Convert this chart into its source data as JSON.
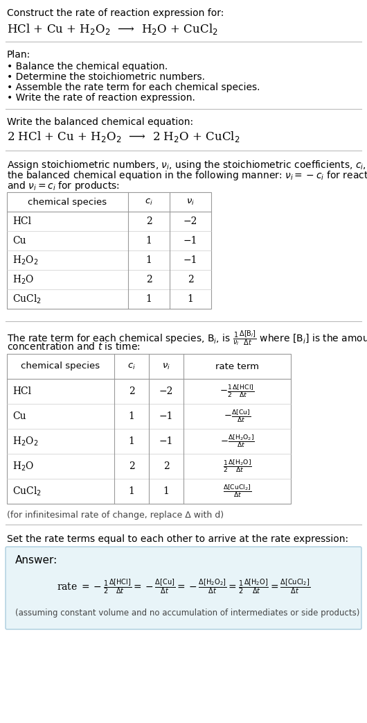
{
  "bg_color": "#ffffff",
  "text_color": "#000000",
  "answer_box_color": "#e8f4f8",
  "answer_box_border": "#aaccdd",
  "title_text": "Construct the rate of reaction expression for:",
  "reaction_unbalanced": "HCl + Cu + H$_2$O$_2$  ⟶  H$_2$O + CuCl$_2$",
  "plan_title": "Plan:",
  "plan_items": [
    "• Balance the chemical equation.",
    "• Determine the stoichiometric numbers.",
    "• Assemble the rate term for each chemical species.",
    "• Write the rate of reaction expression."
  ],
  "balanced_title": "Write the balanced chemical equation:",
  "reaction_balanced": "2 HCl + Cu + H$_2$O$_2$  ⟶  2 H$_2$O + CuCl$_2$",
  "assign_text1": "Assign stoichiometric numbers, $\\nu_i$, using the stoichiometric coefficients, $c_i$, from",
  "assign_text2": "the balanced chemical equation in the following manner: $\\nu_i = -c_i$ for reactants",
  "assign_text3": "and $\\nu_i = c_i$ for products:",
  "table1_headers": [
    "chemical species",
    "$c_i$",
    "$\\nu_i$"
  ],
  "table1_rows": [
    [
      "HCl",
      "2",
      "−2"
    ],
    [
      "Cu",
      "1",
      "−1"
    ],
    [
      "H$_2$O$_2$",
      "1",
      "−1"
    ],
    [
      "H$_2$O",
      "2",
      "2"
    ],
    [
      "CuCl$_2$",
      "1",
      "1"
    ]
  ],
  "rate_text1": "The rate term for each chemical species, B$_i$, is $\\frac{1}{\\nu_i}\\frac{\\Delta[\\mathrm{B}_i]}{\\Delta t}$ where [B$_i$] is the amount",
  "rate_text2": "concentration and $t$ is time:",
  "table2_headers": [
    "chemical species",
    "$c_i$",
    "$\\nu_i$",
    "rate term"
  ],
  "table2_rows": [
    [
      "HCl",
      "2",
      "−2",
      "$-\\frac{1}{2}\\frac{\\Delta[\\mathrm{HCl}]}{\\Delta t}$"
    ],
    [
      "Cu",
      "1",
      "−1",
      "$-\\frac{\\Delta[\\mathrm{Cu}]}{\\Delta t}$"
    ],
    [
      "H$_2$O$_2$",
      "1",
      "−1",
      "$-\\frac{\\Delta[\\mathrm{H_2O_2}]}{\\Delta t}$"
    ],
    [
      "H$_2$O",
      "2",
      "2",
      "$\\frac{1}{2}\\frac{\\Delta[\\mathrm{H_2O}]}{\\Delta t}$"
    ],
    [
      "CuCl$_2$",
      "1",
      "1",
      "$\\frac{\\Delta[\\mathrm{CuCl_2}]}{\\Delta t}$"
    ]
  ],
  "delta_note": "(for infinitesimal rate of change, replace Δ with d)",
  "set_text": "Set the rate terms equal to each other to arrive at the rate expression:",
  "answer_label": "Answer:",
  "answer_note": "(assuming constant volume and no accumulation of intermediates or side products)"
}
